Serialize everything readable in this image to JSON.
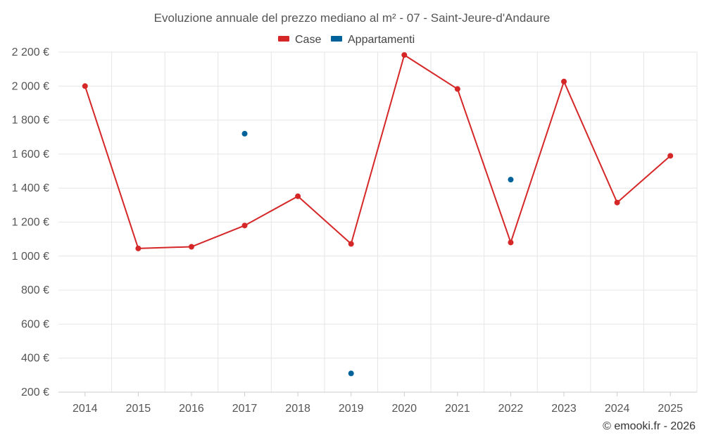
{
  "chart_data": {
    "type": "line",
    "title": "Evoluzione annuale del prezzo mediano al m² - 07 - Saint-Jeure-d'Andaure",
    "xlabel": "",
    "ylabel": "",
    "categories": [
      "2014",
      "2015",
      "2016",
      "2017",
      "2018",
      "2019",
      "2020",
      "2021",
      "2022",
      "2023",
      "2024",
      "2025"
    ],
    "ylim": [
      200,
      2200
    ],
    "y_ticks": [
      200,
      400,
      600,
      800,
      1000,
      1200,
      1400,
      1600,
      1800,
      2000,
      2200
    ],
    "y_tick_labels": [
      "200 €",
      "400 €",
      "600 €",
      "800 €",
      "1 000 €",
      "1 200 €",
      "1 400 €",
      "1 600 €",
      "1 800 €",
      "2 000 €",
      "2 200 €"
    ],
    "grid": true,
    "legend_position": "top-center",
    "series": [
      {
        "name": "Case",
        "color": "#d62728",
        "style": "line",
        "values": [
          2000,
          1045,
          1055,
          1180,
          1352,
          1072,
          2183,
          1983,
          1080,
          2027,
          1315,
          1590
        ]
      },
      {
        "name": "Appartamenti",
        "color": "#00629b",
        "style": "points",
        "values": [
          null,
          null,
          null,
          1720,
          null,
          310,
          null,
          null,
          1450,
          null,
          null,
          null
        ]
      }
    ],
    "credit": "© emooki.fr - 2026"
  }
}
